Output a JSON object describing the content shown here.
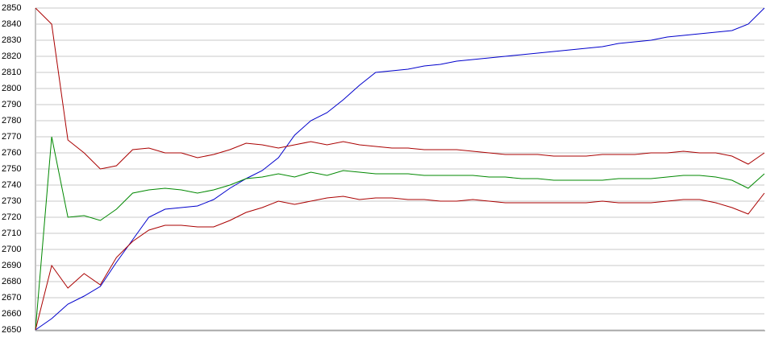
{
  "chart_data": {
    "type": "line",
    "ylim": [
      2650,
      2850
    ],
    "yticks": [
      2650,
      2660,
      2670,
      2680,
      2690,
      2700,
      2710,
      2720,
      2730,
      2740,
      2750,
      2760,
      2770,
      2780,
      2790,
      2800,
      2810,
      2820,
      2830,
      2840,
      2850
    ],
    "grid": true,
    "series": [
      {
        "color": "#0000cc",
        "values": [
          2650,
          2657,
          2666,
          2671,
          2677,
          2692,
          2706,
          2720,
          2725,
          2726,
          2727,
          2731,
          2738,
          2744,
          2749,
          2757,
          2771,
          2780,
          2785,
          2793,
          2802,
          2810,
          2811,
          2812,
          2814,
          2815,
          2817,
          2818,
          2819,
          2820,
          2821,
          2822,
          2823,
          2824,
          2825,
          2826,
          2828,
          2829,
          2830,
          2832,
          2833,
          2834,
          2835,
          2836,
          2840,
          2850
        ]
      },
      {
        "color": "#aa0000",
        "values": [
          2850,
          2840,
          2768,
          2760,
          2750,
          2752,
          2762,
          2763,
          2760,
          2760,
          2757,
          2759,
          2762,
          2766,
          2765,
          2763,
          2765,
          2767,
          2765,
          2767,
          2765,
          2764,
          2763,
          2763,
          2762,
          2762,
          2762,
          2761,
          2760,
          2759,
          2759,
          2759,
          2758,
          2758,
          2758,
          2759,
          2759,
          2759,
          2760,
          2760,
          2761,
          2760,
          2760,
          2758,
          2753,
          2760
        ]
      },
      {
        "color": "#008800",
        "values": [
          2650,
          2770,
          2720,
          2721,
          2718,
          2725,
          2735,
          2737,
          2738,
          2737,
          2735,
          2737,
          2740,
          2744,
          2745,
          2747,
          2745,
          2748,
          2746,
          2749,
          2748,
          2747,
          2747,
          2747,
          2746,
          2746,
          2746,
          2746,
          2745,
          2745,
          2744,
          2744,
          2743,
          2743,
          2743,
          2743,
          2744,
          2744,
          2744,
          2745,
          2746,
          2746,
          2745,
          2743,
          2738,
          2747
        ]
      },
      {
        "color": "#aa0000",
        "values": [
          2650,
          2690,
          2676,
          2685,
          2678,
          2695,
          2705,
          2712,
          2715,
          2715,
          2714,
          2714,
          2718,
          2723,
          2726,
          2730,
          2728,
          2730,
          2732,
          2733,
          2731,
          2732,
          2732,
          2731,
          2731,
          2730,
          2730,
          2731,
          2730,
          2729,
          2729,
          2729,
          2729,
          2729,
          2729,
          2730,
          2729,
          2729,
          2729,
          2730,
          2731,
          2731,
          2729,
          2726,
          2722,
          2735
        ]
      }
    ]
  }
}
